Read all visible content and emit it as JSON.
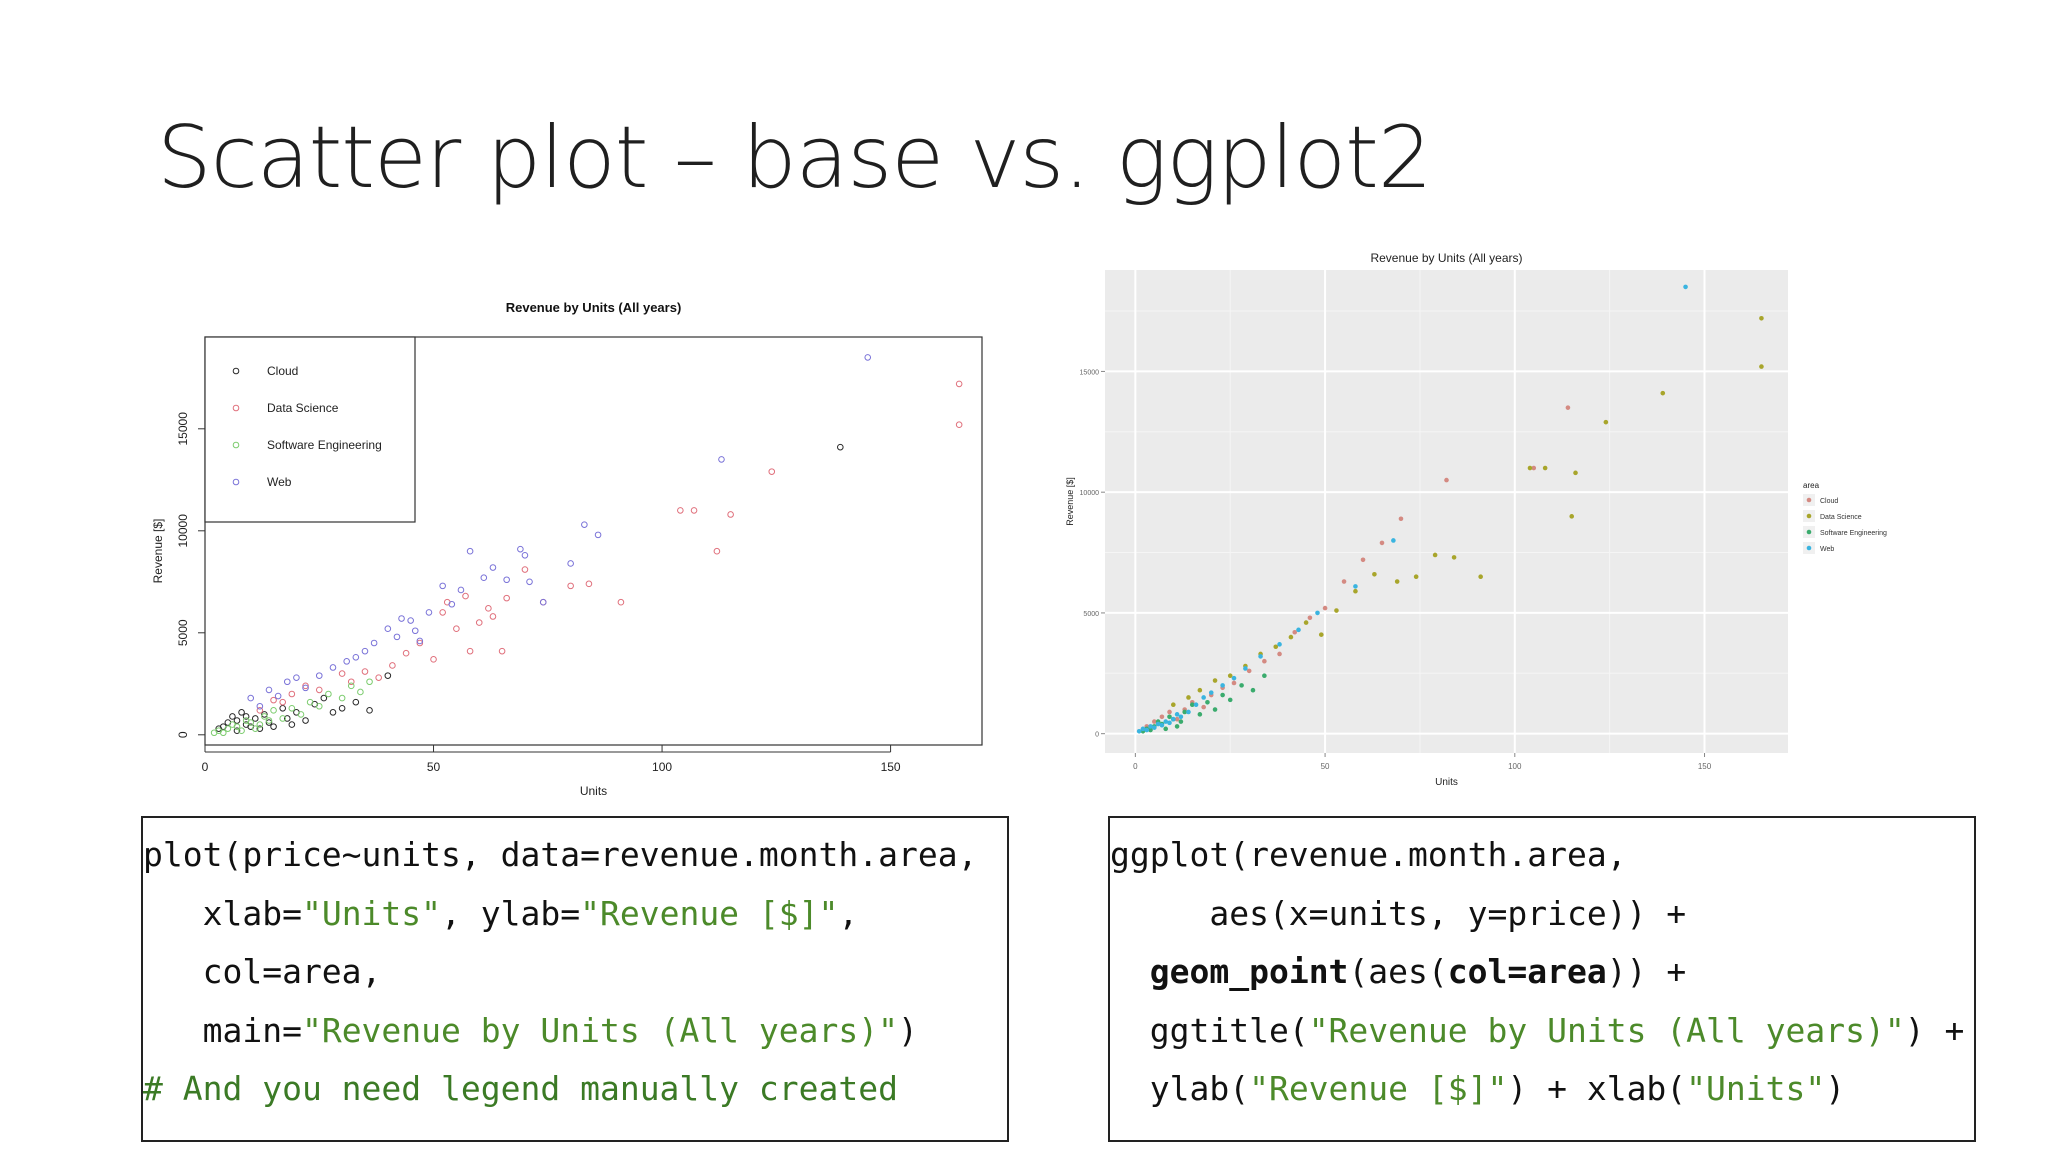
{
  "slide": {
    "title": "Scatter plot – base vs. ggplot2"
  },
  "chart_data": [
    {
      "type": "scatter",
      "title": "Revenue by Units (All years)",
      "xlabel": "Units",
      "ylabel": "Revenue [$]",
      "xlim": [
        0,
        170
      ],
      "ylim": [
        -500,
        19500
      ],
      "xticks": [
        0,
        50,
        100,
        150
      ],
      "yticks": [
        0,
        5000,
        10000,
        15000
      ],
      "grid": false,
      "legend_position": "top-left",
      "series": [
        {
          "name": "Cloud",
          "color": "#2a2a2a",
          "points": [
            [
              3,
              300
            ],
            [
              4,
              400
            ],
            [
              5,
              600
            ],
            [
              6,
              900
            ],
            [
              7,
              200
            ],
            [
              7,
              700
            ],
            [
              8,
              1100
            ],
            [
              9,
              500
            ],
            [
              9,
              900
            ],
            [
              10,
              400
            ],
            [
              11,
              800
            ],
            [
              12,
              300
            ],
            [
              13,
              1000
            ],
            [
              14,
              600
            ],
            [
              15,
              400
            ],
            [
              17,
              1300
            ],
            [
              18,
              800
            ],
            [
              19,
              500
            ],
            [
              20,
              1100
            ],
            [
              22,
              700
            ],
            [
              24,
              1500
            ],
            [
              26,
              1800
            ],
            [
              28,
              1100
            ],
            [
              30,
              1300
            ],
            [
              33,
              1600
            ],
            [
              36,
              1200
            ],
            [
              40,
              2900
            ],
            [
              139,
              14100
            ]
          ]
        },
        {
          "name": "Data Science",
          "color": "#e0707c",
          "points": [
            [
              12,
              1200
            ],
            [
              15,
              1700
            ],
            [
              17,
              1600
            ],
            [
              19,
              2000
            ],
            [
              22,
              2400
            ],
            [
              25,
              2200
            ],
            [
              30,
              3000
            ],
            [
              32,
              2600
            ],
            [
              35,
              3100
            ],
            [
              38,
              2800
            ],
            [
              41,
              3400
            ],
            [
              44,
              4000
            ],
            [
              47,
              4500
            ],
            [
              50,
              3700
            ],
            [
              52,
              6000
            ],
            [
              53,
              6500
            ],
            [
              55,
              5200
            ],
            [
              57,
              6800
            ],
            [
              58,
              4100
            ],
            [
              60,
              5500
            ],
            [
              62,
              6200
            ],
            [
              63,
              5800
            ],
            [
              65,
              4100
            ],
            [
              66,
              6700
            ],
            [
              70,
              8100
            ],
            [
              74,
              6500
            ],
            [
              80,
              7300
            ],
            [
              84,
              7400
            ],
            [
              91,
              6500
            ],
            [
              104,
              11000
            ],
            [
              107,
              11000
            ],
            [
              112,
              9000
            ],
            [
              115,
              10800
            ],
            [
              124,
              12900
            ],
            [
              165,
              17200
            ],
            [
              165,
              15200
            ]
          ]
        },
        {
          "name": "Software Engineering",
          "color": "#7ccc6e",
          "points": [
            [
              2,
              100
            ],
            [
              3,
              200
            ],
            [
              4,
              100
            ],
            [
              5,
              300
            ],
            [
              6,
              500
            ],
            [
              7,
              400
            ],
            [
              8,
              200
            ],
            [
              9,
              700
            ],
            [
              10,
              600
            ],
            [
              11,
              300
            ],
            [
              12,
              500
            ],
            [
              13,
              900
            ],
            [
              14,
              700
            ],
            [
              15,
              1200
            ],
            [
              17,
              800
            ],
            [
              19,
              1300
            ],
            [
              21,
              1000
            ],
            [
              23,
              1600
            ],
            [
              25,
              1400
            ],
            [
              27,
              2000
            ],
            [
              30,
              1800
            ],
            [
              32,
              2400
            ],
            [
              34,
              2100
            ],
            [
              36,
              2600
            ]
          ]
        },
        {
          "name": "Web",
          "color": "#7a73d8",
          "points": [
            [
              10,
              1800
            ],
            [
              12,
              1400
            ],
            [
              14,
              2200
            ],
            [
              16,
              1900
            ],
            [
              18,
              2600
            ],
            [
              20,
              2800
            ],
            [
              22,
              2300
            ],
            [
              25,
              2900
            ],
            [
              28,
              3300
            ],
            [
              31,
              3600
            ],
            [
              33,
              3800
            ],
            [
              35,
              4100
            ],
            [
              37,
              4500
            ],
            [
              40,
              5200
            ],
            [
              42,
              4800
            ],
            [
              43,
              5700
            ],
            [
              45,
              5600
            ],
            [
              46,
              5100
            ],
            [
              47,
              4600
            ],
            [
              49,
              6000
            ],
            [
              52,
              7300
            ],
            [
              54,
              6400
            ],
            [
              56,
              7100
            ],
            [
              58,
              9000
            ],
            [
              61,
              7700
            ],
            [
              63,
              8200
            ],
            [
              66,
              7600
            ],
            [
              69,
              9100
            ],
            [
              70,
              8800
            ],
            [
              71,
              7500
            ],
            [
              74,
              6500
            ],
            [
              80,
              8400
            ],
            [
              83,
              10300
            ],
            [
              86,
              9800
            ],
            [
              113,
              13500
            ],
            [
              145,
              18500
            ]
          ]
        }
      ]
    },
    {
      "type": "scatter",
      "title": "Revenue by Units (All years)",
      "xlabel": "Units",
      "ylabel": "Revenue [$]",
      "xlim": [
        -8,
        172
      ],
      "ylim": [
        -800,
        19200
      ],
      "xticks": [
        0,
        50,
        100,
        150
      ],
      "yticks": [
        0,
        5000,
        10000,
        15000
      ],
      "grid": true,
      "legend_position": "right",
      "legend_title": "area",
      "series": [
        {
          "name": "Cloud",
          "color": "#d48a82",
          "points": [
            [
              3,
              300
            ],
            [
              5,
              500
            ],
            [
              7,
              700
            ],
            [
              9,
              900
            ],
            [
              11,
              600
            ],
            [
              13,
              1000
            ],
            [
              15,
              1300
            ],
            [
              18,
              1100
            ],
            [
              20,
              1600
            ],
            [
              23,
              1900
            ],
            [
              26,
              2100
            ],
            [
              30,
              2600
            ],
            [
              34,
              3000
            ],
            [
              38,
              3300
            ],
            [
              42,
              4200
            ],
            [
              46,
              4800
            ],
            [
              50,
              5200
            ],
            [
              55,
              6300
            ],
            [
              60,
              7200
            ],
            [
              65,
              7900
            ],
            [
              70,
              8900
            ],
            [
              82,
              10500
            ],
            [
              105,
              11000
            ],
            [
              114,
              13500
            ]
          ]
        },
        {
          "name": "Data Science",
          "color": "#a8a52b",
          "points": [
            [
              10,
              1200
            ],
            [
              14,
              1500
            ],
            [
              17,
              1800
            ],
            [
              21,
              2200
            ],
            [
              25,
              2400
            ],
            [
              29,
              2800
            ],
            [
              33,
              3300
            ],
            [
              37,
              3600
            ],
            [
              41,
              4000
            ],
            [
              45,
              4600
            ],
            [
              49,
              4100
            ],
            [
              53,
              5100
            ],
            [
              58,
              5900
            ],
            [
              63,
              6600
            ],
            [
              69,
              6300
            ],
            [
              74,
              6500
            ],
            [
              79,
              7400
            ],
            [
              84,
              7300
            ],
            [
              91,
              6500
            ],
            [
              104,
              11000
            ],
            [
              108,
              11000
            ],
            [
              115,
              9000
            ],
            [
              116,
              10800
            ],
            [
              124,
              12900
            ],
            [
              139,
              14100
            ],
            [
              165,
              17200
            ],
            [
              165,
              15200
            ]
          ]
        },
        {
          "name": "Software Engineering",
          "color": "#3aab6d",
          "points": [
            [
              2,
              100
            ],
            [
              3,
              200
            ],
            [
              4,
              150
            ],
            [
              5,
              300
            ],
            [
              6,
              500
            ],
            [
              7,
              400
            ],
            [
              8,
              200
            ],
            [
              9,
              700
            ],
            [
              10,
              600
            ],
            [
              11,
              300
            ],
            [
              12,
              500
            ],
            [
              13,
              900
            ],
            [
              15,
              1200
            ],
            [
              17,
              800
            ],
            [
              19,
              1300
            ],
            [
              21,
              1000
            ],
            [
              23,
              1600
            ],
            [
              25,
              1400
            ],
            [
              28,
              2000
            ],
            [
              31,
              1800
            ],
            [
              34,
              2400
            ]
          ]
        },
        {
          "name": "Web",
          "color": "#3ab4e0",
          "points": [
            [
              1,
              100
            ],
            [
              2,
              200
            ],
            [
              3,
              150
            ],
            [
              4,
              300
            ],
            [
              5,
              250
            ],
            [
              6,
              400
            ],
            [
              7,
              350
            ],
            [
              8,
              500
            ],
            [
              9,
              450
            ],
            [
              10,
              600
            ],
            [
              11,
              800
            ],
            [
              12,
              700
            ],
            [
              14,
              900
            ],
            [
              16,
              1200
            ],
            [
              18,
              1500
            ],
            [
              20,
              1700
            ],
            [
              23,
              2000
            ],
            [
              26,
              2300
            ],
            [
              29,
              2700
            ],
            [
              33,
              3200
            ],
            [
              38,
              3700
            ],
            [
              43,
              4300
            ],
            [
              48,
              5000
            ],
            [
              58,
              6100
            ],
            [
              68,
              8000
            ],
            [
              145,
              18500
            ]
          ]
        }
      ]
    }
  ],
  "code_base": [
    [
      {
        "t": "plot(price~units, data=revenue.month.area,"
      }
    ],
    [
      {
        "t": "   xlab="
      },
      {
        "t": "\"Units\"",
        "c": "str"
      },
      {
        "t": ", ylab="
      },
      {
        "t": "\"Revenue [$]\"",
        "c": "str"
      },
      {
        "t": ","
      }
    ],
    [
      {
        "t": "   col=area,"
      }
    ],
    [
      {
        "t": "   main="
      },
      {
        "t": "\"Revenue by Units (All years)\"",
        "c": "str"
      },
      {
        "t": ")"
      }
    ],
    [
      {
        "t": "# And you need legend manually created",
        "c": "cmt"
      }
    ]
  ],
  "code_gg": [
    [
      {
        "t": "ggplot(revenue.month.area,"
      }
    ],
    [
      {
        "t": "     aes(x=units, y=price)) +"
      }
    ],
    [
      {
        "t": "  "
      },
      {
        "t": "geom_point",
        "c": "kw"
      },
      {
        "t": "(aes("
      },
      {
        "t": "col=area",
        "c": "kw"
      },
      {
        "t": ")) +"
      }
    ],
    [
      {
        "t": "  ggtitle("
      },
      {
        "t": "\"Revenue by Units (All years)\"",
        "c": "str"
      },
      {
        "t": ") +"
      }
    ],
    [
      {
        "t": "  ylab("
      },
      {
        "t": "\"Revenue [$]\"",
        "c": "str"
      },
      {
        "t": ") + xlab("
      },
      {
        "t": "\"Units\"",
        "c": "str"
      },
      {
        "t": ")"
      }
    ]
  ]
}
